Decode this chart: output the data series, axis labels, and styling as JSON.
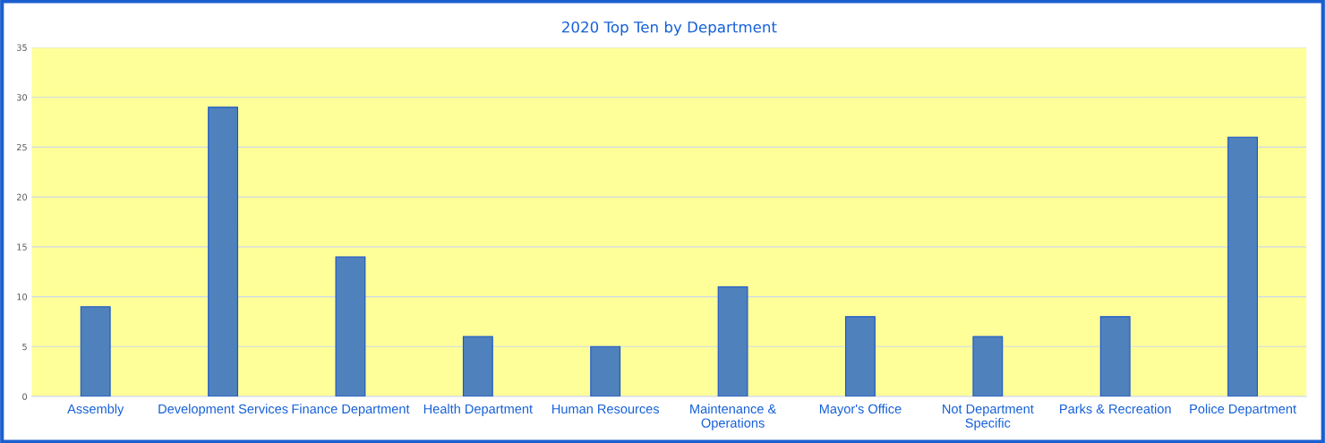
{
  "chart_data": {
    "type": "bar",
    "title": "2020 Top Ten by Department",
    "categories": [
      "Assembly",
      "Development Services",
      "Finance Department",
      "Health Department",
      "Human Resources",
      "Maintenance & Operations",
      "Mayor's Office",
      "Not Department Specific",
      "Parks & Recreation",
      "Police Department"
    ],
    "values": [
      9,
      29,
      14,
      6,
      5,
      11,
      8,
      6,
      8,
      26
    ],
    "color": "#4f81bd",
    "ylim": [
      0,
      35
    ],
    "yticks": [
      0,
      5,
      10,
      15,
      20,
      25,
      30,
      35
    ],
    "grid": "y",
    "legend": false
  }
}
